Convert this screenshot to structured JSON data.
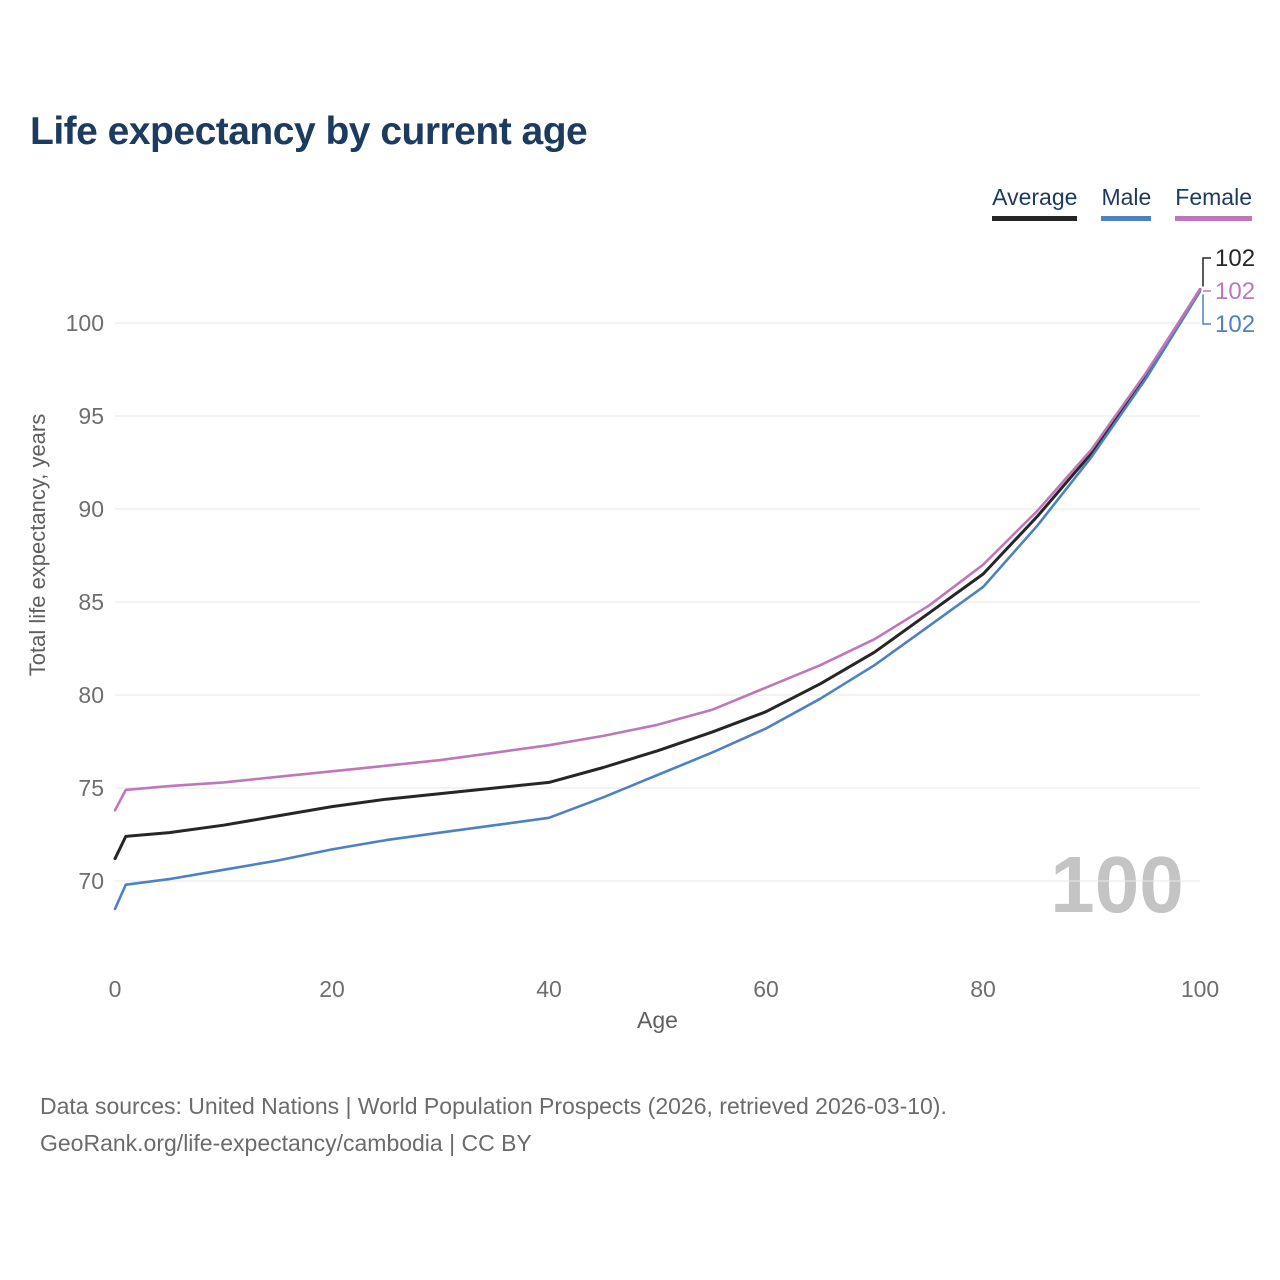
{
  "title": "Life expectancy by current age",
  "legend": {
    "items": [
      {
        "label": "Average",
        "color": "#262626"
      },
      {
        "label": "Male",
        "color": "#4e80c4"
      },
      {
        "label": "Female",
        "color": "#bf77b8"
      }
    ]
  },
  "watermark": "100",
  "footer": {
    "line1": "Data sources: United Nations | World Population Prospects (2026, retrieved 2026-03-10).",
    "line2": "GeoRank.org/life-expectancy/cambodia | CC BY"
  },
  "chart_data": {
    "type": "line",
    "title": "Life expectancy by current age",
    "xlabel": "Age",
    "ylabel": "Total life expectancy, years",
    "xlim": [
      0,
      100
    ],
    "ylim": [
      68,
      103.5
    ],
    "xticks": [
      0,
      20,
      40,
      60,
      80,
      100
    ],
    "yticks": [
      70,
      75,
      80,
      85,
      90,
      95,
      100
    ],
    "grid": "horizontal",
    "legend_position": "top-right",
    "x": [
      0,
      1,
      5,
      10,
      15,
      20,
      25,
      30,
      35,
      40,
      45,
      50,
      55,
      60,
      65,
      70,
      75,
      80,
      85,
      90,
      95,
      100
    ],
    "series": [
      {
        "name": "Average",
        "color": "#262626",
        "end_label": "102",
        "values": [
          71.2,
          72.4,
          72.6,
          73.0,
          73.5,
          74.0,
          74.4,
          74.7,
          75.0,
          75.3,
          76.1,
          77.0,
          78.0,
          79.1,
          80.6,
          82.3,
          84.4,
          86.5,
          89.6,
          93.0,
          97.2,
          101.8
        ]
      },
      {
        "name": "Male",
        "color": "#4e80c4",
        "end_label": "102",
        "values": [
          68.5,
          69.8,
          70.1,
          70.6,
          71.1,
          71.7,
          72.2,
          72.6,
          73.0,
          73.4,
          74.5,
          75.7,
          76.9,
          78.2,
          79.8,
          81.6,
          83.7,
          85.8,
          89.1,
          92.8,
          97.0,
          101.7
        ]
      },
      {
        "name": "Female",
        "color": "#bf77b8",
        "end_label": "102",
        "values": [
          73.8,
          74.9,
          75.1,
          75.3,
          75.6,
          75.9,
          76.2,
          76.5,
          76.9,
          77.3,
          77.8,
          78.4,
          79.2,
          80.4,
          81.6,
          83.0,
          84.8,
          87.0,
          89.9,
          93.2,
          97.3,
          101.8
        ]
      }
    ]
  }
}
